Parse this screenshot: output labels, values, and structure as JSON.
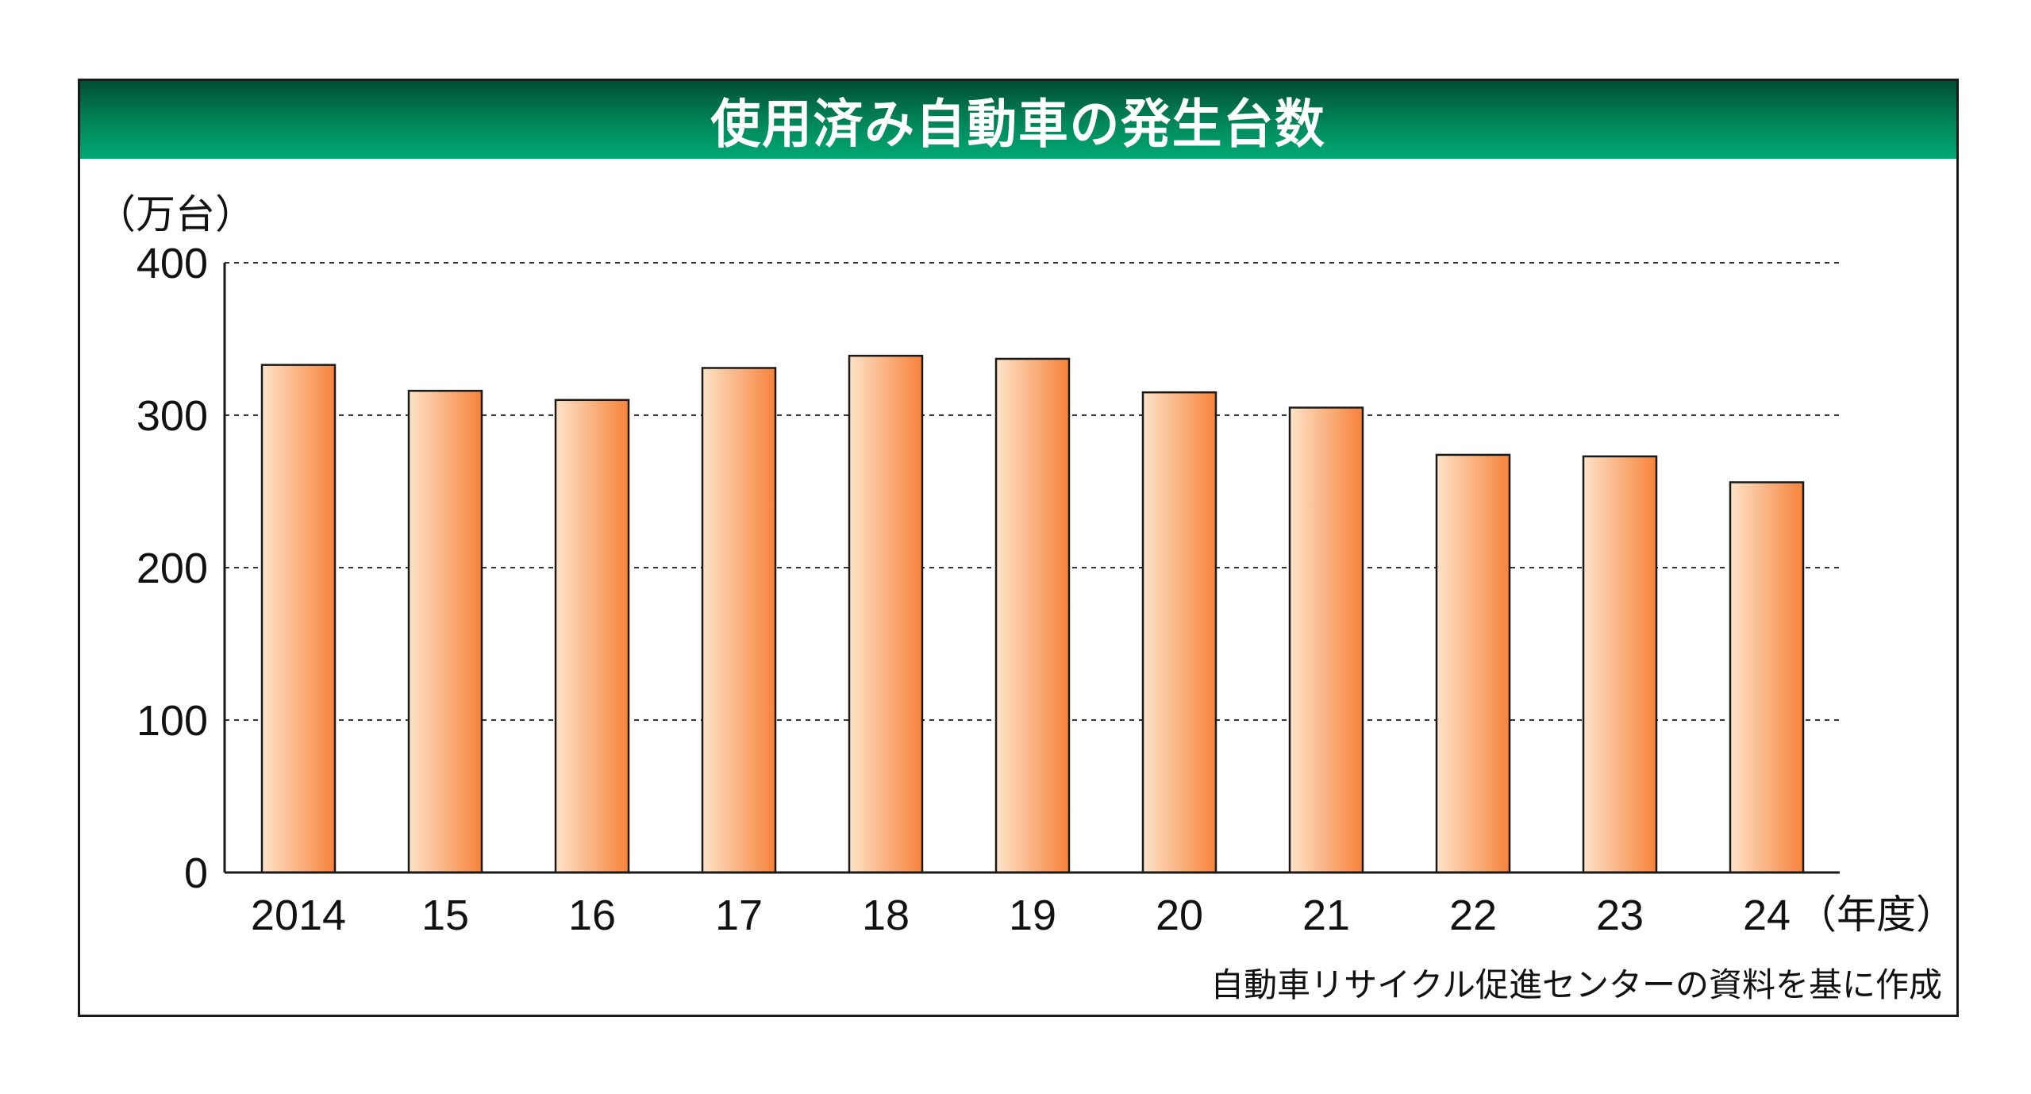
{
  "chart_data": {
    "type": "bar",
    "title": "使用済み自動車の発生台数",
    "ylabel": "（万台）",
    "xlabel": "（年度）",
    "categories": [
      "2014",
      "15",
      "16",
      "17",
      "18",
      "19",
      "20",
      "21",
      "22",
      "23",
      "24"
    ],
    "values": [
      333,
      316,
      310,
      331,
      339,
      337,
      315,
      305,
      274,
      273,
      256
    ],
    "ylim": [
      0,
      400
    ],
    "yticks": [
      "0",
      "100",
      "200",
      "300",
      "400"
    ],
    "grid": true,
    "source": "自動車リサイクル促進センターの資料を基に作成",
    "colors": {
      "bar_light": "#fde3c8",
      "bar_dark": "#f7823a",
      "title_bar_dark": "#004f33",
      "title_bar_light": "#00a874"
    }
  }
}
